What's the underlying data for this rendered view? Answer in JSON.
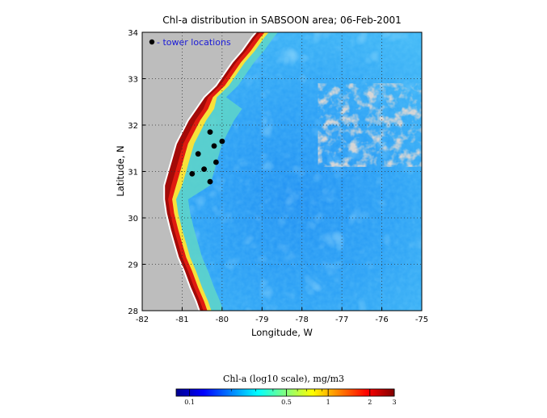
{
  "title": "Chl-a distribution in SABSOON area; 06-Feb-2001",
  "map": {
    "xlabel": "Longitude, W",
    "ylabel": "Latitude, N",
    "lon_range": [
      -82,
      -75
    ],
    "lat_range": [
      28,
      34
    ],
    "x_ticks": [
      "-82",
      "-81",
      "-80",
      "-79",
      "-78",
      "-77",
      "-76",
      "-75"
    ],
    "y_ticks": [
      "28",
      "29",
      "30",
      "31",
      "32",
      "33",
      "34"
    ],
    "grid": "dotted",
    "land_color": "#bdbdbd",
    "cloud_color": "#a9a9a9",
    "legend_label": "- tower locations",
    "legend_color": "#1a1ad8",
    "towers": [
      {
        "lon": -80.3,
        "lat": 31.85
      },
      {
        "lon": -80.0,
        "lat": 31.65
      },
      {
        "lon": -80.2,
        "lat": 31.55
      },
      {
        "lon": -80.6,
        "lat": 31.38
      },
      {
        "lon": -80.15,
        "lat": 31.2
      },
      {
        "lon": -80.45,
        "lat": 31.05
      },
      {
        "lon": -80.75,
        "lat": 30.95
      },
      {
        "lon": -80.3,
        "lat": 30.78
      }
    ]
  },
  "colorbar": {
    "title": "Chl-a (log10 scale), mg/m3",
    "scale": "log10",
    "range": [
      0.08,
      3
    ],
    "ticks": [
      "0.1",
      "0.5",
      "1",
      "2",
      "3"
    ],
    "tick_values": [
      0.1,
      0.5,
      1,
      2,
      3
    ],
    "colormap": "jet"
  }
}
